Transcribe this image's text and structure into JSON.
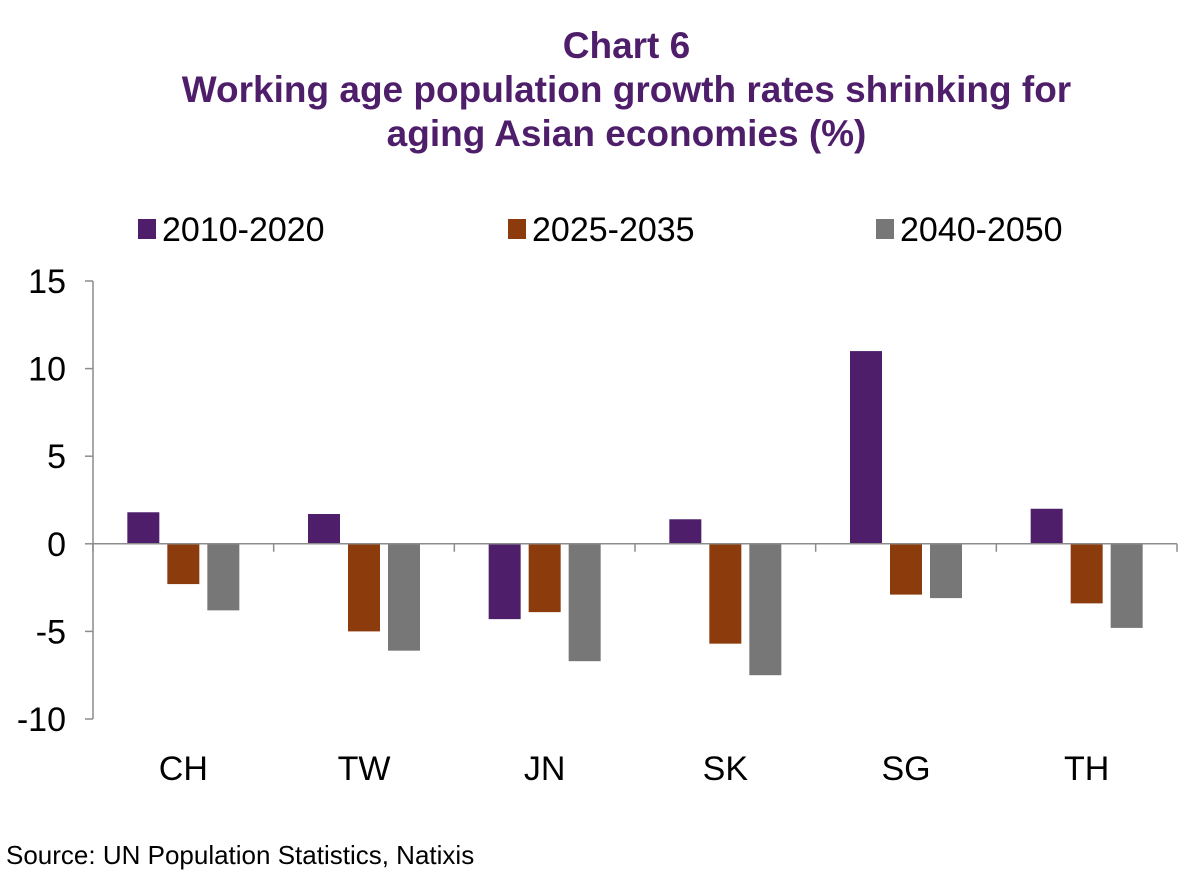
{
  "chart_data": {
    "type": "bar",
    "title": "Chart 6",
    "subtitle": "Working age population growth rates shrinking for aging Asian economies (%)",
    "subtitle_lines": [
      "Working age population growth rates shrinking for",
      "aging Asian economies (%)"
    ],
    "xlabel": "",
    "ylabel": "",
    "categories": [
      "CH",
      "TW",
      "JN",
      "SK",
      "SG",
      "TH"
    ],
    "series": [
      {
        "name": "2010-2020",
        "color": "#4f1e6b",
        "values": [
          1.8,
          1.7,
          -4.3,
          1.4,
          11.0,
          2.0
        ]
      },
      {
        "name": "2025-2035",
        "color": "#8b3b0c",
        "values": [
          -2.3,
          -5.0,
          -3.9,
          -5.7,
          -2.9,
          -3.4
        ]
      },
      {
        "name": "2040-2050",
        "color": "#777777",
        "values": [
          -3.8,
          -6.1,
          -6.7,
          -7.5,
          -3.1,
          -4.8
        ]
      }
    ],
    "ylim": [
      -10,
      15
    ],
    "yticks": [
      15,
      10,
      5,
      0,
      -5,
      -10
    ],
    "grid": false,
    "legend": "top"
  },
  "source": "Source: UN Population Statistics, Natixis"
}
